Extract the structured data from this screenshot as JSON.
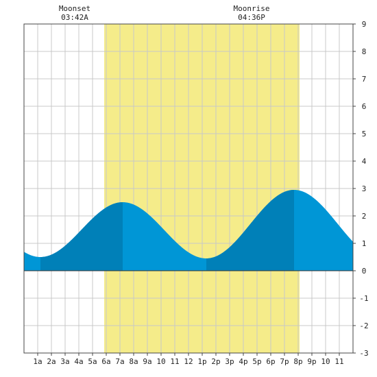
{
  "chart_data": {
    "type": "area",
    "title": "",
    "xlabel": "",
    "ylabel": "",
    "x_range_hours": [
      0,
      24
    ],
    "ylim": [
      -3,
      9
    ],
    "y_ticks": [
      "-3",
      "-2",
      "-1",
      "0",
      "1",
      "2",
      "3",
      "4",
      "5",
      "6",
      "7",
      "8",
      "9"
    ],
    "x_tick_labels": [
      "1a",
      "2a",
      "3a",
      "4a",
      "5a",
      "6a",
      "7a",
      "8a",
      "9a",
      "10",
      "11",
      "12",
      "1p",
      "2p",
      "3p",
      "4p",
      "5p",
      "6p",
      "7p",
      "8p",
      "9p",
      "10",
      "11"
    ],
    "grid": true,
    "daylight_band_hours": [
      5.85,
      20.1
    ],
    "tide_extremes": [
      {
        "hour": 1.2,
        "height": 0.5,
        "kind": "low"
      },
      {
        "hour": 7.2,
        "height": 2.5,
        "kind": "high"
      },
      {
        "hour": 13.3,
        "height": 0.45,
        "kind": "low"
      },
      {
        "hour": 19.7,
        "height": 2.95,
        "kind": "high"
      }
    ],
    "rising_segments_hours": [
      [
        1.2,
        7.2
      ],
      [
        13.3,
        19.7
      ]
    ],
    "moon_events": [
      {
        "label": "Moonset",
        "time": "03:42A",
        "hour": 3.7
      },
      {
        "label": "Moonrise",
        "time": "04:36P",
        "hour": 16.6
      }
    ],
    "colors": {
      "tide_fill": "#0096d6",
      "tide_rising_fill": "#0080b8",
      "daylight": "#f5ec8a",
      "grid": "#c8c8c8",
      "frame": "#444444",
      "zero_line": "#333333"
    }
  }
}
